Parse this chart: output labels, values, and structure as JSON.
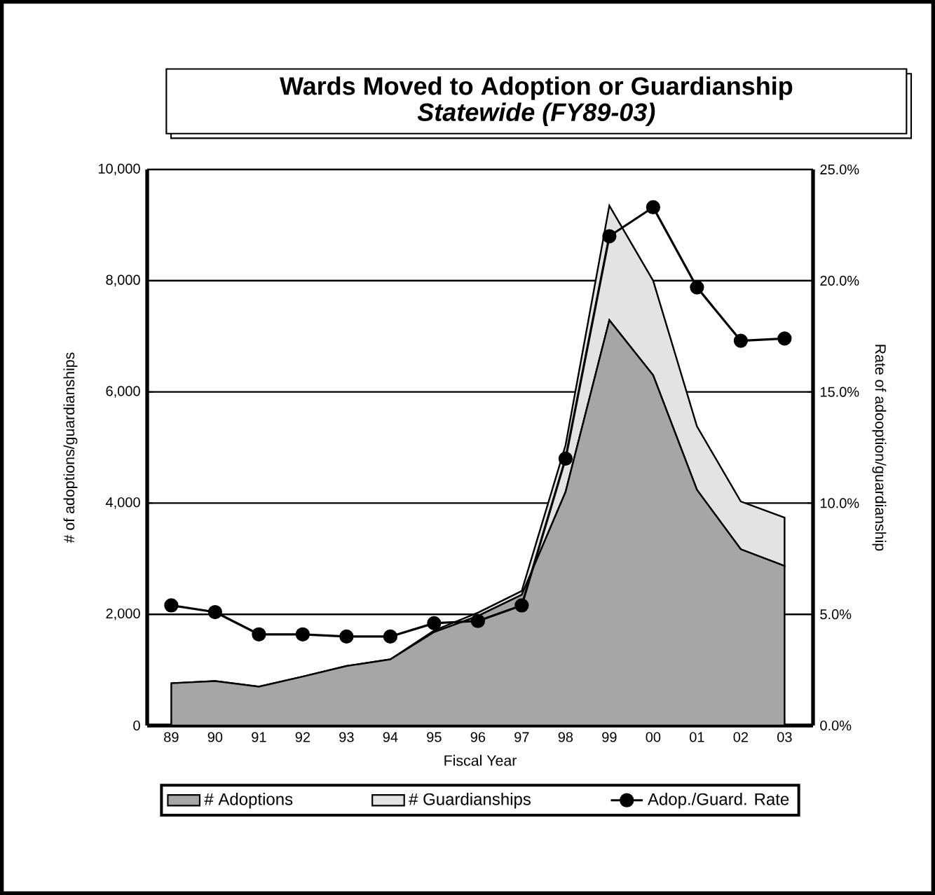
{
  "chart_data": {
    "type": "area",
    "title": "Wards Moved to Adoption or Guardianship",
    "subtitle": "Statewide  (FY89-03)",
    "xlabel": "Fiscal Year",
    "ylabel": "# of adoptions/guardianships",
    "y2label": "Rate of adooption/guardianship",
    "categories": [
      "89",
      "90",
      "91",
      "92",
      "93",
      "94",
      "95",
      "96",
      "97",
      "98",
      "99",
      "00",
      "01",
      "02",
      "03"
    ],
    "stacked": true,
    "series": [
      {
        "name": "# Adoptions",
        "color": "#a6a6a6",
        "values": [
          760,
          800,
          700,
          880,
          1070,
          1190,
          1680,
          1970,
          2350,
          4200,
          7290,
          6300,
          4240,
          3170,
          2870
        ]
      },
      {
        "name": "# Guardianships",
        "color": "#e3e3e3",
        "values": [
          0,
          0,
          0,
          0,
          0,
          0,
          30,
          60,
          70,
          840,
          2060,
          1700,
          1140,
          860,
          870
        ]
      },
      {
        "name": "Adop./Guard. Rate",
        "type": "line",
        "axis": "y2",
        "color": "#000000",
        "marker": "circle",
        "values": [
          5.4,
          5.1,
          4.1,
          4.1,
          4.0,
          4.0,
          4.6,
          4.7,
          5.4,
          12.0,
          22.0,
          23.3,
          19.7,
          17.3,
          17.4
        ]
      }
    ],
    "ylim": [
      0,
      10000
    ],
    "yticks": [
      {
        "value": 0,
        "label": "0"
      },
      {
        "value": 2000,
        "label": "2,000"
      },
      {
        "value": 4000,
        "label": "4,000"
      },
      {
        "value": 6000,
        "label": "6,000"
      },
      {
        "value": 8000,
        "label": "8,000"
      },
      {
        "value": 10000,
        "label": "10,000"
      }
    ],
    "y2lim": [
      0,
      25
    ],
    "y2ticks": [
      {
        "value": 0,
        "label": "0.0%"
      },
      {
        "value": 5,
        "label": "5.0%"
      },
      {
        "value": 10,
        "label": "10.0%"
      },
      {
        "value": 15,
        "label": "15.0%"
      },
      {
        "value": 20,
        "label": "20.0%"
      },
      {
        "value": 25,
        "label": "25.0%"
      }
    ],
    "grid": "y",
    "legend": "bottom"
  }
}
